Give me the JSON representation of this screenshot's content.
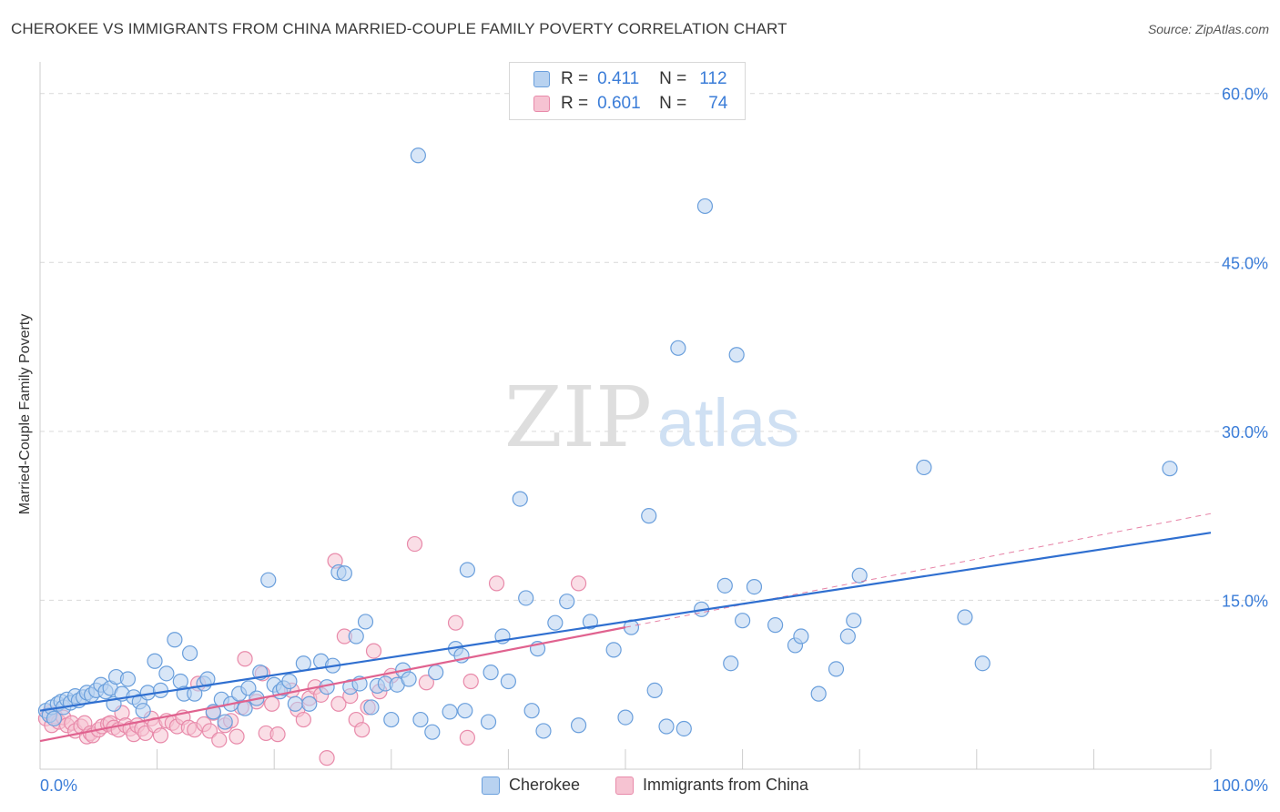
{
  "header": {
    "title": "CHEROKEE VS IMMIGRANTS FROM CHINA MARRIED-COUPLE FAMILY POVERTY CORRELATION CHART",
    "source": "Source: ZipAtlas.com"
  },
  "watermark": {
    "zip": "ZIP",
    "atlas": "atlas"
  },
  "stats_legend": {
    "r_label": "R =",
    "n_label": "N =",
    "rows": [
      {
        "r": "0.411",
        "n": "112"
      },
      {
        "r": "0.601",
        "n": "74"
      }
    ]
  },
  "colors": {
    "cherokee_fill": "#b8d2f0",
    "cherokee_stroke": "#6a9fdc",
    "cherokee_line": "#2f6fd0",
    "china_fill": "#f6c3d2",
    "china_stroke": "#e88aaa",
    "china_line": "#e0628f",
    "axis_text": "#3b7dd8",
    "grid": "#d9d9d9"
  },
  "chart_data": {
    "type": "scatter",
    "title": "CHEROKEE VS IMMIGRANTS FROM CHINA MARRIED-COUPLE FAMILY POVERTY CORRELATION CHART",
    "xlabel": "",
    "ylabel": "Married-Couple Family Poverty",
    "xlim": [
      0,
      100
    ],
    "ylim": [
      0,
      62
    ],
    "x_tick_labels": [
      "0.0%",
      "100.0%"
    ],
    "y_ticks": [
      15,
      30,
      45,
      60
    ],
    "y_tick_labels": [
      "15.0%",
      "30.0%",
      "45.0%",
      "60.0%"
    ],
    "grid": true,
    "legend_position": "bottom-center",
    "series": [
      {
        "name": "Cherokee",
        "r": 0.411,
        "n": 112,
        "trend": {
          "x": [
            0,
            100
          ],
          "y": [
            5.2,
            21.0
          ]
        },
        "points": [
          [
            0.5,
            5.2
          ],
          [
            0.8,
            4.8
          ],
          [
            1.0,
            5.5
          ],
          [
            1.2,
            4.5
          ],
          [
            1.5,
            5.8
          ],
          [
            1.8,
            6.0
          ],
          [
            2.0,
            5.5
          ],
          [
            2.3,
            6.2
          ],
          [
            2.6,
            5.9
          ],
          [
            3.0,
            6.5
          ],
          [
            3.3,
            6.1
          ],
          [
            3.7,
            6.4
          ],
          [
            4.0,
            6.8
          ],
          [
            4.4,
            6.6
          ],
          [
            4.8,
            7.0
          ],
          [
            5.2,
            7.5
          ],
          [
            5.6,
            6.9
          ],
          [
            6.0,
            7.2
          ],
          [
            6.3,
            5.8
          ],
          [
            6.5,
            8.2
          ],
          [
            7.0,
            6.7
          ],
          [
            7.5,
            8.0
          ],
          [
            8.0,
            6.4
          ],
          [
            8.5,
            6.0
          ],
          [
            8.8,
            5.2
          ],
          [
            9.2,
            6.8
          ],
          [
            9.8,
            9.6
          ],
          [
            10.3,
            7.0
          ],
          [
            10.8,
            8.5
          ],
          [
            11.5,
            11.5
          ],
          [
            12.0,
            7.8
          ],
          [
            12.3,
            6.7
          ],
          [
            12.8,
            10.3
          ],
          [
            13.2,
            6.7
          ],
          [
            14.0,
            7.6
          ],
          [
            14.3,
            8.0
          ],
          [
            14.8,
            5.1
          ],
          [
            15.5,
            6.2
          ],
          [
            15.8,
            4.2
          ],
          [
            16.3,
            5.8
          ],
          [
            17.0,
            6.7
          ],
          [
            17.5,
            5.4
          ],
          [
            17.8,
            7.2
          ],
          [
            18.5,
            6.3
          ],
          [
            18.8,
            8.6
          ],
          [
            19.5,
            16.8
          ],
          [
            20.0,
            7.5
          ],
          [
            20.5,
            6.9
          ],
          [
            20.8,
            7.2
          ],
          [
            21.3,
            7.8
          ],
          [
            21.8,
            5.8
          ],
          [
            22.5,
            9.4
          ],
          [
            23.0,
            5.8
          ],
          [
            24.0,
            9.6
          ],
          [
            24.5,
            7.3
          ],
          [
            25.0,
            9.2
          ],
          [
            25.5,
            17.5
          ],
          [
            26.0,
            17.4
          ],
          [
            26.5,
            7.3
          ],
          [
            27.0,
            11.8
          ],
          [
            27.3,
            7.6
          ],
          [
            27.8,
            13.1
          ],
          [
            28.3,
            5.5
          ],
          [
            28.8,
            7.4
          ],
          [
            29.5,
            7.6
          ],
          [
            30.0,
            4.4
          ],
          [
            30.5,
            7.5
          ],
          [
            31.0,
            8.8
          ],
          [
            31.5,
            8.0
          ],
          [
            32.3,
            54.5
          ],
          [
            32.5,
            4.4
          ],
          [
            33.5,
            3.3
          ],
          [
            33.8,
            8.6
          ],
          [
            35.0,
            5.1
          ],
          [
            35.5,
            10.7
          ],
          [
            36.0,
            10.1
          ],
          [
            36.3,
            5.2
          ],
          [
            36.5,
            17.7
          ],
          [
            38.3,
            4.2
          ],
          [
            38.5,
            8.6
          ],
          [
            39.5,
            11.8
          ],
          [
            40.0,
            7.8
          ],
          [
            41.0,
            24.0
          ],
          [
            41.5,
            15.2
          ],
          [
            42.0,
            5.2
          ],
          [
            42.5,
            10.7
          ],
          [
            43.0,
            3.4
          ],
          [
            44.0,
            13.0
          ],
          [
            45.0,
            14.9
          ],
          [
            46.0,
            3.9
          ],
          [
            47.0,
            13.1
          ],
          [
            49.0,
            10.6
          ],
          [
            50.0,
            4.6
          ],
          [
            50.5,
            12.6
          ],
          [
            52.0,
            22.5
          ],
          [
            52.5,
            7.0
          ],
          [
            53.5,
            3.8
          ],
          [
            54.5,
            37.4
          ],
          [
            55.0,
            3.6
          ],
          [
            56.8,
            50.0
          ],
          [
            56.5,
            14.2
          ],
          [
            58.5,
            16.3
          ],
          [
            59.0,
            9.4
          ],
          [
            59.5,
            36.8
          ],
          [
            60.0,
            13.2
          ],
          [
            61.0,
            16.2
          ],
          [
            62.8,
            12.8
          ],
          [
            64.5,
            11.0
          ],
          [
            65.0,
            11.8
          ],
          [
            66.5,
            6.7
          ],
          [
            68.0,
            8.9
          ],
          [
            69.0,
            11.8
          ],
          [
            69.5,
            13.2
          ],
          [
            70.0,
            17.2
          ],
          [
            75.5,
            26.8
          ],
          [
            79.0,
            13.5
          ],
          [
            80.5,
            9.4
          ],
          [
            96.5,
            26.7
          ]
        ]
      },
      {
        "name": "Immigrants from China",
        "r": 0.601,
        "n": 74,
        "trend": {
          "x": [
            0,
            50
          ],
          "y": [
            2.5,
            12.6
          ]
        },
        "trend_dashed": {
          "x": [
            50,
            100
          ],
          "y": [
            12.6,
            22.7
          ]
        },
        "points": [
          [
            0.5,
            4.5
          ],
          [
            0.8,
            5.0
          ],
          [
            1.0,
            3.9
          ],
          [
            1.3,
            4.7
          ],
          [
            1.6,
            4.2
          ],
          [
            2.0,
            4.6
          ],
          [
            2.3,
            3.9
          ],
          [
            2.7,
            4.1
          ],
          [
            3.0,
            3.4
          ],
          [
            3.5,
            3.8
          ],
          [
            3.8,
            4.1
          ],
          [
            4.0,
            2.9
          ],
          [
            4.3,
            3.2
          ],
          [
            4.5,
            3.0
          ],
          [
            5.0,
            3.5
          ],
          [
            5.3,
            3.8
          ],
          [
            5.8,
            4.0
          ],
          [
            6.0,
            4.1
          ],
          [
            6.3,
            3.7
          ],
          [
            6.7,
            3.5
          ],
          [
            7.0,
            5.0
          ],
          [
            7.3,
            3.9
          ],
          [
            7.7,
            3.6
          ],
          [
            8.0,
            3.1
          ],
          [
            8.3,
            3.9
          ],
          [
            8.7,
            3.6
          ],
          [
            9.0,
            3.2
          ],
          [
            9.5,
            4.5
          ],
          [
            9.8,
            3.9
          ],
          [
            10.3,
            3.0
          ],
          [
            10.8,
            4.3
          ],
          [
            11.3,
            4.1
          ],
          [
            11.7,
            3.8
          ],
          [
            12.2,
            4.6
          ],
          [
            12.7,
            3.7
          ],
          [
            13.2,
            3.5
          ],
          [
            13.5,
            7.6
          ],
          [
            14.0,
            4.0
          ],
          [
            14.5,
            3.4
          ],
          [
            14.8,
            5.0
          ],
          [
            15.3,
            2.6
          ],
          [
            15.8,
            3.9
          ],
          [
            16.3,
            4.3
          ],
          [
            16.8,
            2.9
          ],
          [
            17.2,
            5.5
          ],
          [
            17.5,
            9.8
          ],
          [
            18.5,
            6.0
          ],
          [
            19.0,
            8.5
          ],
          [
            19.3,
            3.2
          ],
          [
            19.8,
            5.8
          ],
          [
            20.3,
            3.1
          ],
          [
            21.5,
            7.0
          ],
          [
            22.0,
            5.3
          ],
          [
            22.5,
            4.4
          ],
          [
            23.0,
            6.3
          ],
          [
            23.5,
            7.3
          ],
          [
            24.0,
            6.6
          ],
          [
            24.5,
            1.0
          ],
          [
            25.2,
            18.5
          ],
          [
            25.5,
            5.8
          ],
          [
            26.0,
            11.8
          ],
          [
            26.5,
            6.5
          ],
          [
            27.0,
            4.4
          ],
          [
            27.5,
            3.5
          ],
          [
            28.0,
            5.5
          ],
          [
            28.5,
            10.5
          ],
          [
            29.0,
            6.9
          ],
          [
            30.0,
            8.3
          ],
          [
            32.0,
            20.0
          ],
          [
            33.0,
            7.7
          ],
          [
            35.5,
            13.0
          ],
          [
            36.5,
            2.8
          ],
          [
            36.8,
            7.8
          ],
          [
            39.0,
            16.5
          ],
          [
            46.0,
            16.5
          ]
        ]
      }
    ]
  },
  "bottom_legend": {
    "items": [
      {
        "label": "Cherokee"
      },
      {
        "label": "Immigrants from China"
      }
    ]
  }
}
